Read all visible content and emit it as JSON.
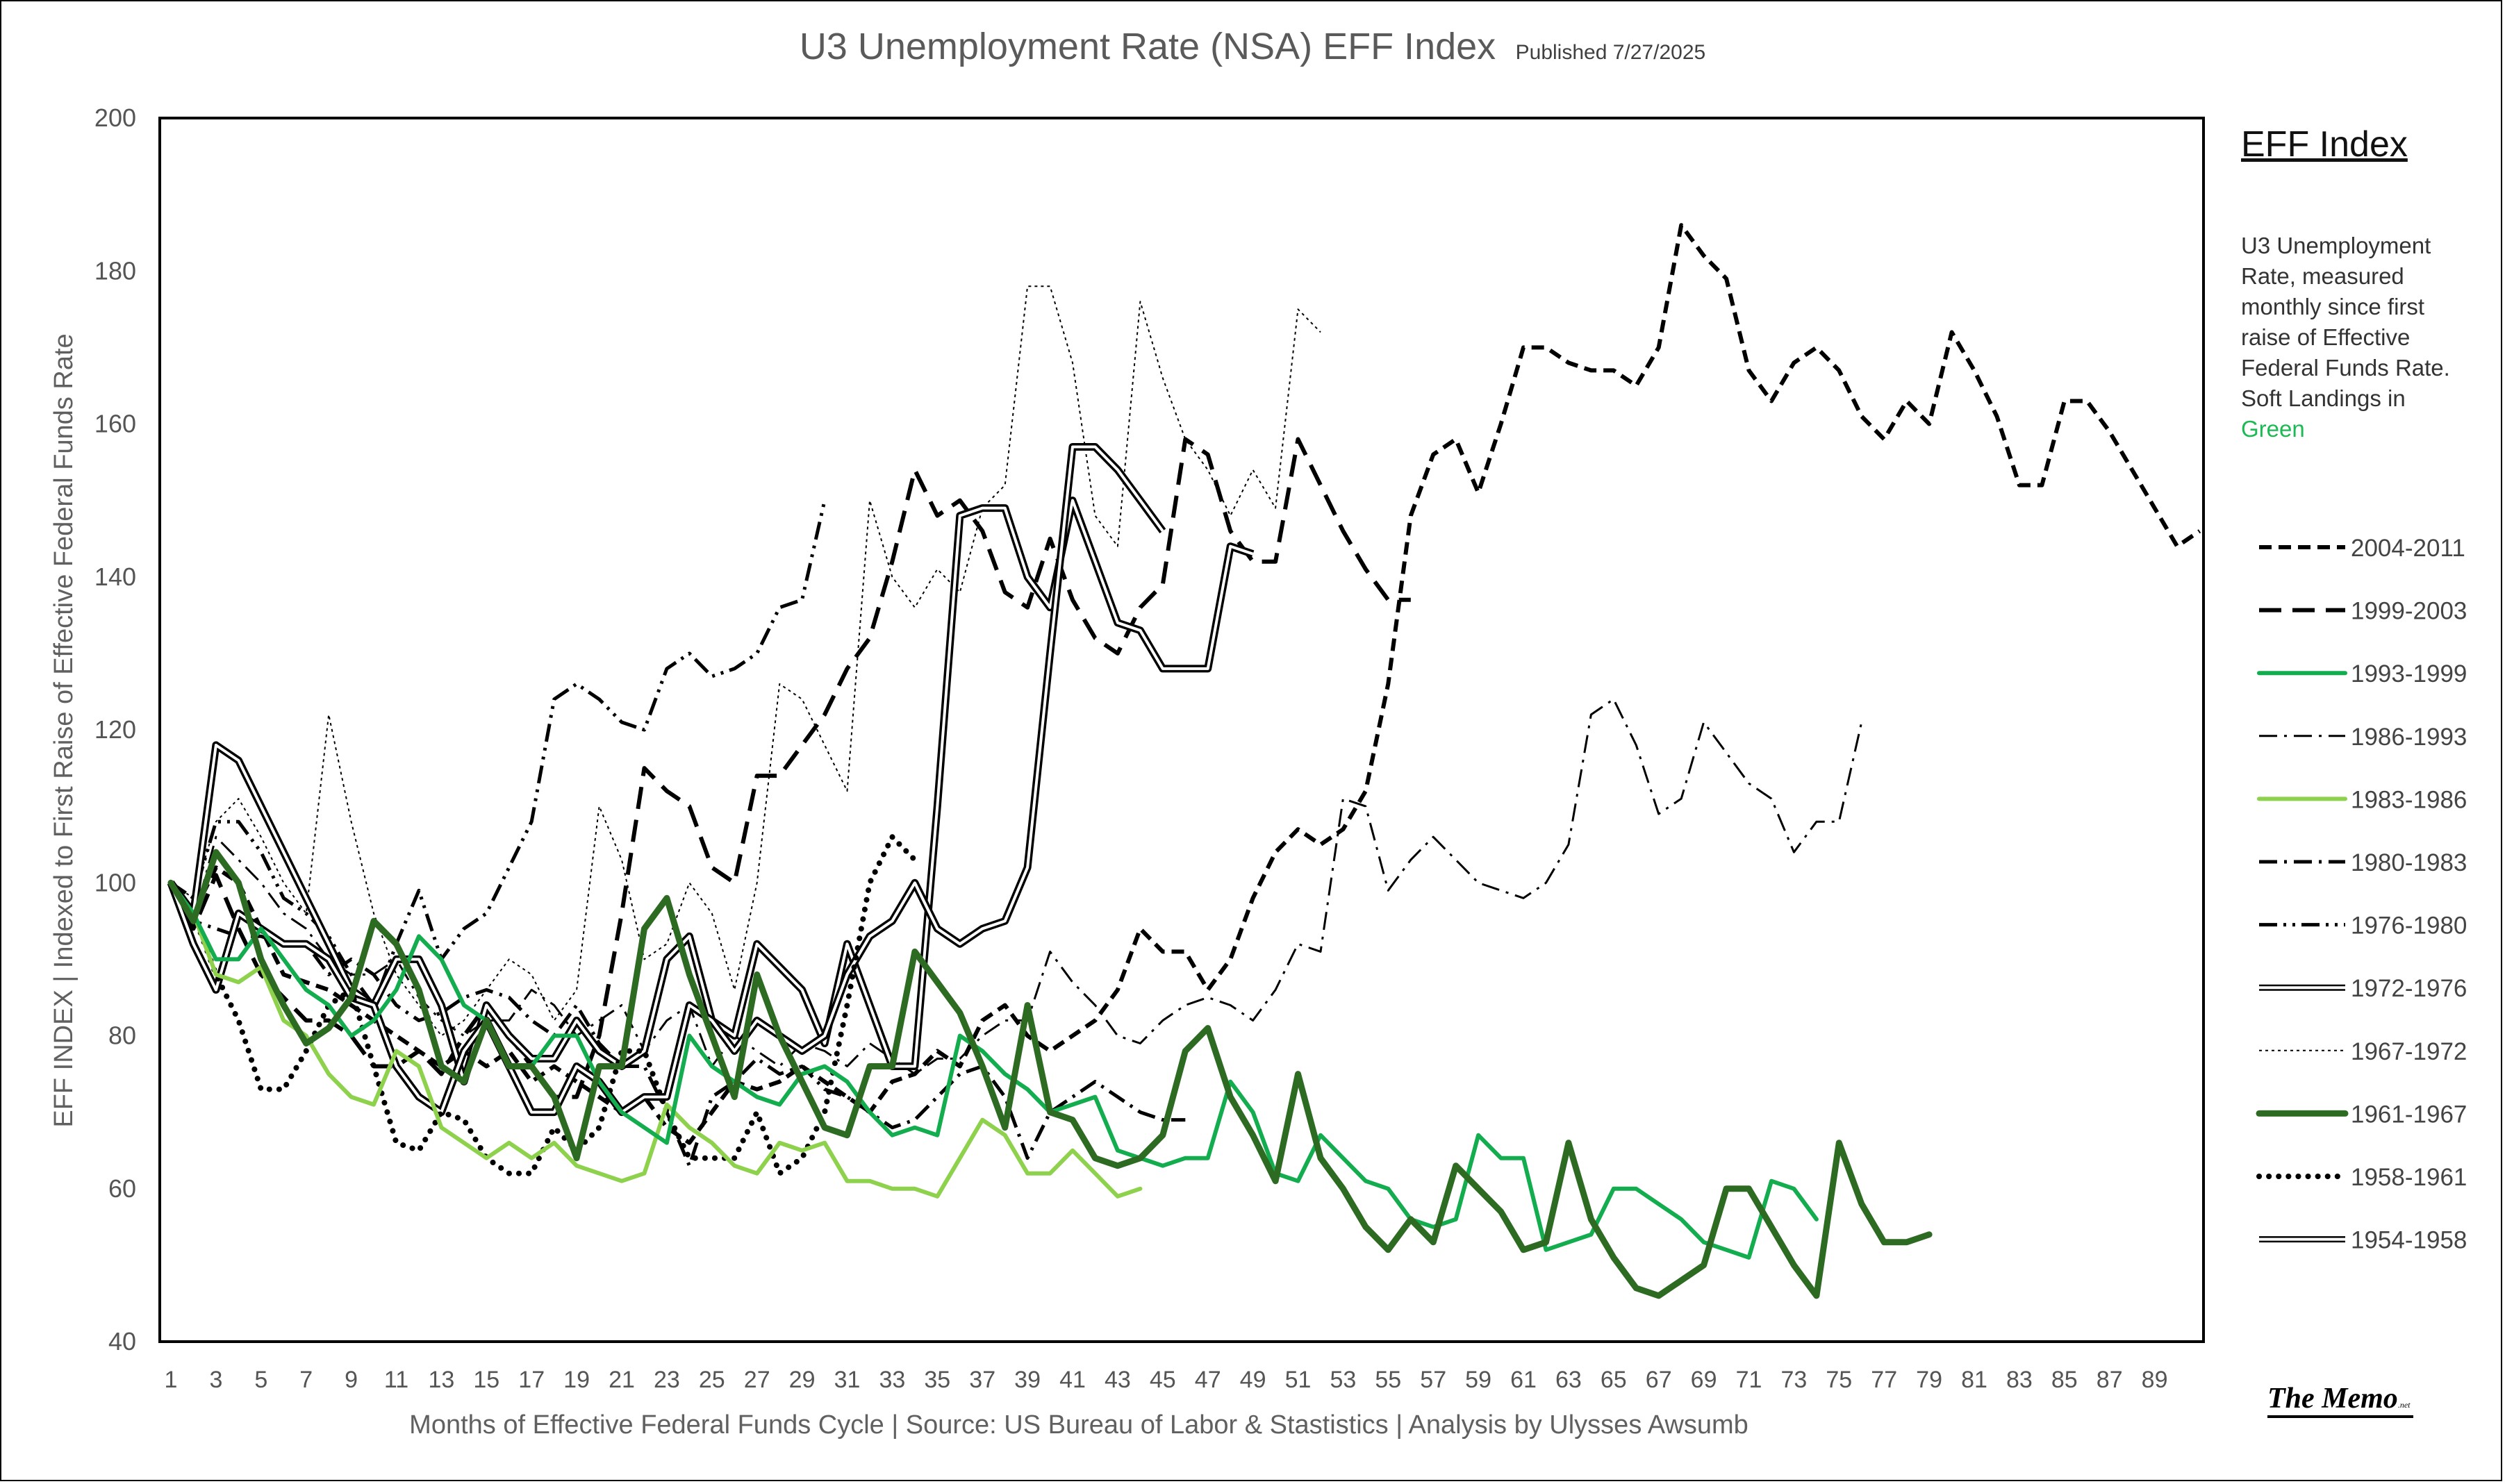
{
  "title": "U3 Unemployment Rate (NSA) EFF Index",
  "published": "Published 7/27/2025",
  "legend": {
    "heading": "EFF Index",
    "description_main": "U3 Unemployment Rate, measured monthly since first raise of Effective Federal Funds Rate. Soft Landings in",
    "description_green": "Green"
  },
  "brand": {
    "name": "The Memo",
    "suffix": ".net"
  },
  "colors": {
    "soft_landing_bright": "#13ad4f",
    "soft_landing_light": "#8ed14c",
    "soft_landing_dark": "#2e6b22",
    "hard": "#000000"
  },
  "chart_data": {
    "type": "line",
    "title": "U3 Unemployment Rate (NSA) EFF Index",
    "xlabel": "Months of Effective Federal Funds Cycle | Source: US Bureau of Labor & Stastistics | Analysis by Ulysses Awsumb",
    "ylabel": "EFF INDEX | Indexed to First Raise of Effective Federal Funds Rate",
    "xlim": [
      1,
      90
    ],
    "ylim": [
      40,
      200
    ],
    "yticks": [
      40,
      60,
      80,
      100,
      120,
      140,
      160,
      180,
      200
    ],
    "xticks": [
      1,
      3,
      5,
      7,
      9,
      11,
      13,
      15,
      17,
      19,
      21,
      23,
      25,
      27,
      29,
      31,
      33,
      35,
      37,
      39,
      41,
      43,
      45,
      47,
      49,
      51,
      53,
      55,
      57,
      59,
      61,
      63,
      65,
      67,
      69,
      71,
      73,
      75,
      77,
      79,
      81,
      83,
      85,
      87,
      89
    ],
    "series": [
      {
        "name": "2004-2011",
        "style": "dash-short",
        "color": "#000000",
        "soft_landing": false,
        "values": [
          100,
          96,
          102,
          100,
          94,
          88,
          87,
          86,
          84,
          82,
          80,
          78,
          76,
          78,
          76,
          78,
          74,
          76,
          74,
          72,
          70,
          72,
          68,
          66,
          70,
          74,
          73,
          74,
          76,
          74,
          72,
          70,
          74,
          75,
          78,
          76,
          82,
          84,
          80,
          78,
          80,
          82,
          86,
          94,
          91,
          91,
          86,
          90,
          98,
          104,
          107,
          105,
          107,
          112,
          126,
          148,
          156,
          158,
          151,
          160,
          170,
          170,
          168,
          167,
          167,
          165,
          170,
          186,
          182,
          179,
          167,
          163,
          168,
          170,
          167,
          161,
          158,
          163,
          160,
          172,
          167,
          161,
          152,
          152,
          163,
          163,
          159,
          154,
          149,
          144,
          146
        ]
      },
      {
        "name": "1999-2003",
        "style": "dash-long",
        "color": "#000000",
        "soft_landing": false,
        "values": [
          100,
          94,
          101,
          94,
          88,
          85,
          82,
          82,
          80,
          76,
          76,
          78,
          75,
          80,
          84,
          80,
          76,
          72,
          72,
          80,
          96,
          115,
          112,
          110,
          102,
          100,
          114,
          114,
          118,
          122,
          128,
          132,
          142,
          154,
          148,
          150,
          146,
          138,
          136,
          145,
          137,
          132,
          130,
          136,
          139,
          158,
          156,
          146,
          142,
          142,
          158,
          152,
          146,
          141,
          137,
          137
        ]
      },
      {
        "name": "1993-1999",
        "style": "solid",
        "color": "#13ad4f",
        "soft_landing": true,
        "width": 6,
        "values": [
          100,
          96,
          90,
          90,
          94,
          90,
          86,
          84,
          80,
          82,
          86,
          93,
          90,
          84,
          82,
          76,
          76,
          80,
          80,
          74,
          70,
          68,
          66,
          80,
          76,
          74,
          72,
          71,
          75,
          76,
          74,
          70,
          67,
          68,
          67,
          80,
          78,
          75,
          73,
          70,
          71,
          72,
          65,
          64,
          63,
          64,
          64,
          74,
          70,
          62,
          61,
          67,
          64,
          61,
          60,
          56,
          55,
          56,
          67,
          64,
          64,
          52,
          53,
          54,
          60,
          60,
          58,
          56,
          53,
          52,
          51,
          61,
          60,
          56
        ]
      },
      {
        "name": "1986-1993",
        "style": "dash-dot",
        "color": "#000000",
        "soft_landing": false,
        "width": 3,
        "values": [
          100,
          95,
          106,
          103,
          100,
          96,
          94,
          90,
          88,
          88,
          90,
          85,
          82,
          80,
          82,
          82,
          86,
          84,
          80,
          82,
          84,
          78,
          82,
          84,
          76,
          80,
          78,
          76,
          79,
          78,
          76,
          79,
          77,
          75,
          77,
          77,
          80,
          82,
          82,
          91,
          87,
          84,
          80,
          79,
          82,
          84,
          85,
          84,
          82,
          86,
          92,
          91,
          111,
          110,
          99,
          103,
          106,
          103,
          100,
          99,
          98,
          100,
          105,
          122,
          124,
          118,
          109,
          111,
          121,
          117,
          113,
          111,
          104,
          108,
          108,
          121
        ]
      },
      {
        "name": "1983-1986",
        "style": "solid",
        "color": "#8ed14c",
        "soft_landing": true,
        "width": 6,
        "values": [
          100,
          96,
          88,
          87,
          89,
          82,
          80,
          75,
          72,
          71,
          78,
          76,
          68,
          66,
          64,
          66,
          64,
          66,
          63,
          62,
          61,
          62,
          71,
          68,
          66,
          63,
          62,
          66,
          65,
          66,
          61,
          61,
          60,
          60,
          59,
          64,
          69,
          67,
          62,
          62,
          65,
          62,
          59,
          60
        ]
      },
      {
        "name": "1980-1983",
        "style": "dash-dot",
        "color": "#000000",
        "soft_landing": false,
        "width": 5,
        "values": [
          100,
          95,
          94,
          93,
          93,
          92,
          92,
          88,
          90,
          88,
          84,
          82,
          83,
          85,
          86,
          85,
          82,
          80,
          84,
          79,
          76,
          76,
          70,
          63,
          72,
          74,
          77,
          75,
          76,
          73,
          72,
          70,
          68,
          69,
          72,
          75,
          76,
          72,
          64,
          70,
          72,
          74,
          72,
          70,
          69,
          69
        ]
      },
      {
        "name": "1976-1980",
        "style": "dash-dot-dot",
        "color": "#000000",
        "soft_landing": false,
        "width": 5,
        "values": [
          100,
          98,
          108,
          108,
          104,
          98,
          96,
          93,
          88,
          84,
          92,
          99,
          90,
          94,
          96,
          102,
          108,
          124,
          126,
          124,
          121,
          120,
          128,
          130,
          127,
          128,
          130,
          136,
          137,
          150
        ]
      },
      {
        "name": "1972-1976",
        "style": "double",
        "color": "#000000",
        "soft_landing": false,
        "values": [
          100,
          96,
          118,
          116,
          110,
          104,
          98,
          92,
          86,
          84,
          90,
          90,
          84,
          74,
          84,
          80,
          77,
          77,
          82,
          78,
          76,
          78,
          90,
          93,
          82,
          80,
          92,
          89,
          86,
          79,
          92,
          84,
          76,
          76,
          110,
          148,
          149,
          149,
          140,
          136,
          150,
          142,
          134,
          133,
          128,
          128,
          128,
          144,
          143
        ]
      },
      {
        "name": "1967-1972",
        "style": "dotted",
        "color": "#000000",
        "soft_landing": false,
        "width": 2,
        "values": [
          100,
          98,
          108,
          111,
          106,
          100,
          96,
          122,
          108,
          96,
          88,
          84,
          80,
          82,
          86,
          90,
          88,
          82,
          86,
          110,
          103,
          90,
          92,
          100,
          96,
          86,
          100,
          126,
          124,
          118,
          112,
          150,
          140,
          136,
          141,
          138,
          149,
          152,
          178,
          178,
          168,
          148,
          144,
          176,
          166,
          158,
          154,
          148,
          154,
          149,
          175,
          172
        ]
      },
      {
        "name": "1961-1967",
        "style": "solid",
        "color": "#2e6b22",
        "soft_landing": true,
        "width": 9,
        "values": [
          100,
          95,
          104,
          100,
          90,
          84,
          79,
          81,
          85,
          95,
          92,
          86,
          76,
          74,
          82,
          76,
          76,
          72,
          64,
          76,
          76,
          94,
          98,
          88,
          80,
          72,
          88,
          80,
          74,
          68,
          67,
          76,
          76,
          91,
          87,
          83,
          76,
          68,
          84,
          70,
          69,
          64,
          63,
          64,
          67,
          78,
          81,
          72,
          67,
          61,
          75,
          64,
          60,
          55,
          52,
          56,
          53,
          63,
          60,
          57,
          52,
          53,
          66,
          56,
          51,
          47,
          46,
          48,
          50,
          60,
          60,
          55,
          50,
          46,
          66,
          58,
          53,
          53,
          54
        ]
      },
      {
        "name": "1958-1961",
        "style": "round-dot",
        "color": "#000000",
        "soft_landing": false,
        "width": 8,
        "values": [
          100,
          96,
          88,
          82,
          73,
          73,
          78,
          84,
          86,
          76,
          66,
          65,
          70,
          69,
          64,
          62,
          62,
          68,
          65,
          68,
          78,
          78,
          70,
          64,
          64,
          64,
          70,
          62,
          64,
          70,
          84,
          100,
          106,
          103
        ]
      },
      {
        "name": "1954-1958",
        "style": "double",
        "color": "#000000",
        "soft_landing": false,
        "values": [
          100,
          92,
          86,
          96,
          94,
          92,
          92,
          90,
          85,
          84,
          76,
          72,
          70,
          78,
          82,
          76,
          70,
          70,
          76,
          74,
          70,
          72,
          72,
          84,
          82,
          78,
          82,
          80,
          78,
          80,
          88,
          93,
          95,
          100,
          94,
          92,
          94,
          95,
          102,
          130,
          157,
          157,
          154,
          150,
          146
        ]
      }
    ]
  }
}
